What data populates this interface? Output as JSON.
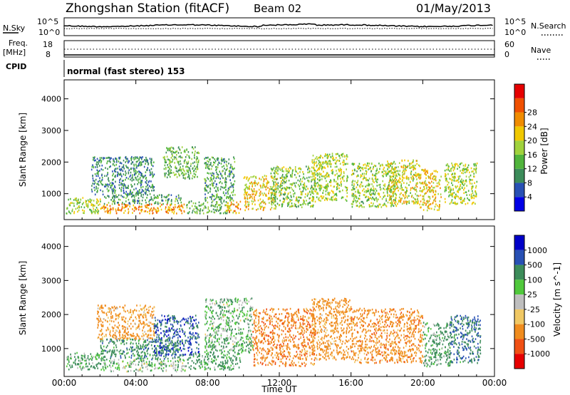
{
  "header": {
    "station": "Zhongshan Station (fitACF)",
    "beam": "Beam 02",
    "date": "01/May/2013"
  },
  "top_panel": {
    "left_label": "N.Sky",
    "left_ticks": [
      "10^5",
      "10^0"
    ],
    "right_ticks": [
      "10^5",
      "10^0"
    ],
    "right_label": "N.Search"
  },
  "freq_panel": {
    "left_label_1": "Freq.",
    "left_label_2": "[MHz]",
    "left_ticks": [
      "18",
      "8"
    ],
    "right_ticks": [
      "60",
      "0"
    ],
    "right_label": "Nave"
  },
  "cpid": {
    "label": "CPID",
    "mode": "normal (fast stereo) 153"
  },
  "chart_data": [
    {
      "type": "heatmap",
      "name": "power",
      "ylabel": "Slant Range [km]",
      "ylim": [
        180,
        4600
      ],
      "yticks": [
        "1000",
        "2000",
        "3000",
        "4000"
      ],
      "xlim": [
        0,
        24
      ],
      "colorbar_label": "Power [dB]",
      "colorbar_ticks": [
        "4",
        "8",
        "12",
        "16",
        "20",
        "24",
        "28"
      ],
      "colorbar_colors": [
        "#0000e6",
        "#2850b4",
        "#3c8c5a",
        "#50b43c",
        "#a0d23c",
        "#f0c800",
        "#f08c00",
        "#f05000",
        "#e60000"
      ],
      "scatter_regions": [
        {
          "t0": 0.1,
          "t1": 2.0,
          "r0": 400,
          "r1": 900,
          "power": 18
        },
        {
          "t0": 2.0,
          "t1": 6.8,
          "r0": 400,
          "r1": 700,
          "power": 26
        },
        {
          "t0": 2.2,
          "t1": 6.5,
          "r0": 700,
          "r1": 1000,
          "power": 12
        },
        {
          "t0": 1.5,
          "t1": 5.0,
          "r0": 1000,
          "r1": 2200,
          "power": 10
        },
        {
          "t0": 5.5,
          "t1": 7.5,
          "r0": 1500,
          "r1": 2500,
          "power": 14
        },
        {
          "t0": 6.8,
          "t1": 9.2,
          "r0": 400,
          "r1": 800,
          "power": 14
        },
        {
          "t0": 9.0,
          "t1": 9.8,
          "r0": 400,
          "r1": 800,
          "power": 24
        },
        {
          "t0": 7.8,
          "t1": 9.5,
          "r0": 800,
          "r1": 2200,
          "power": 12
        },
        {
          "t0": 10.0,
          "t1": 11.8,
          "r0": 500,
          "r1": 1600,
          "power": 22
        },
        {
          "t0": 11.5,
          "t1": 14.0,
          "r0": 600,
          "r1": 1900,
          "power": 16
        },
        {
          "t0": 13.8,
          "t1": 15.8,
          "r0": 800,
          "r1": 2300,
          "power": 18
        },
        {
          "t0": 16.0,
          "t1": 18.5,
          "r0": 600,
          "r1": 2000,
          "power": 17
        },
        {
          "t0": 18.0,
          "t1": 19.8,
          "r0": 700,
          "r1": 2100,
          "power": 20
        },
        {
          "t0": 19.8,
          "t1": 21.0,
          "r0": 500,
          "r1": 1800,
          "power": 22
        },
        {
          "t0": 21.2,
          "t1": 23.0,
          "r0": 700,
          "r1": 2000,
          "power": 18
        }
      ]
    },
    {
      "type": "heatmap",
      "name": "velocity",
      "ylabel": "Slant Range [km]",
      "ylim": [
        180,
        4600
      ],
      "yticks": [
        "1000",
        "2000",
        "3000",
        "4000"
      ],
      "xlim": [
        0,
        24
      ],
      "xticks": [
        "00:00",
        "04:00",
        "08:00",
        "12:00",
        "16:00",
        "20:00",
        "00:00"
      ],
      "xlabel": "Time UT",
      "colorbar_label": "Velocity [m s^-1]",
      "colorbar_ticks": [
        "1000",
        "500",
        "100",
        "25",
        "-25",
        "-100",
        "-500",
        "-1000"
      ],
      "colorbar_colors": [
        "#0000c8",
        "#2850b4",
        "#3c8c5a",
        "#50c83c",
        "#bebebe",
        "#f0c864",
        "#f08c1e",
        "#f05014",
        "#e60000"
      ],
      "scatter_regions": [
        {
          "t0": 0.1,
          "t1": 2.0,
          "r0": 400,
          "r1": 900,
          "vel": 200
        },
        {
          "t0": 2.0,
          "t1": 6.8,
          "r0": 350,
          "r1": 700,
          "vel": 60
        },
        {
          "t0": 2.0,
          "t1": 6.5,
          "r0": 700,
          "r1": 1300,
          "vel": 300
        },
        {
          "t0": 1.8,
          "t1": 5.0,
          "r0": 1300,
          "r1": 2300,
          "vel": -200
        },
        {
          "t0": 5.0,
          "t1": 7.5,
          "r0": 800,
          "r1": 2000,
          "vel": 700
        },
        {
          "t0": 6.8,
          "t1": 9.8,
          "r0": 400,
          "r1": 900,
          "vel": 200
        },
        {
          "t0": 7.8,
          "t1": 10.5,
          "r0": 900,
          "r1": 2500,
          "vel": 80
        },
        {
          "t0": 10.5,
          "t1": 14.0,
          "r0": 500,
          "r1": 2200,
          "vel": -350
        },
        {
          "t0": 13.8,
          "t1": 16.0,
          "r0": 700,
          "r1": 2500,
          "vel": -250
        },
        {
          "t0": 16.0,
          "t1": 20.0,
          "r0": 600,
          "r1": 2200,
          "vel": -300
        },
        {
          "t0": 20.0,
          "t1": 21.5,
          "r0": 500,
          "r1": 1800,
          "vel": 150
        },
        {
          "t0": 21.5,
          "t1": 23.2,
          "r0": 600,
          "r1": 2000,
          "vel": 500
        }
      ]
    }
  ]
}
